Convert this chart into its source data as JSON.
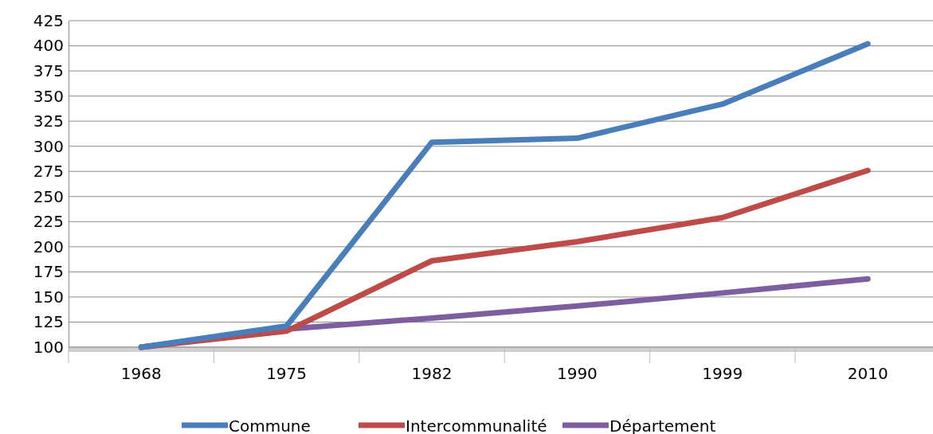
{
  "chart_data": {
    "type": "line",
    "categories": [
      "1968",
      "1975",
      "1982",
      "1990",
      "1999",
      "2010"
    ],
    "series": [
      {
        "name": "Commune",
        "color": "#4a7ebb",
        "values": [
          100,
          121,
          304,
          308,
          342,
          402
        ]
      },
      {
        "name": "Intercommunalité",
        "color": "#be4b48",
        "values": [
          100,
          116,
          186,
          205,
          229,
          276
        ]
      },
      {
        "name": "Département",
        "color": "#7d5fa0",
        "values": [
          100,
          118,
          129,
          141,
          154,
          168
        ]
      }
    ],
    "ylim": [
      100,
      425
    ],
    "yticks": [
      100,
      125,
      150,
      175,
      200,
      225,
      250,
      275,
      300,
      325,
      350,
      375,
      400,
      425
    ],
    "grid": "y",
    "legend": "bottom",
    "line_style": "solid",
    "marker": "none"
  }
}
